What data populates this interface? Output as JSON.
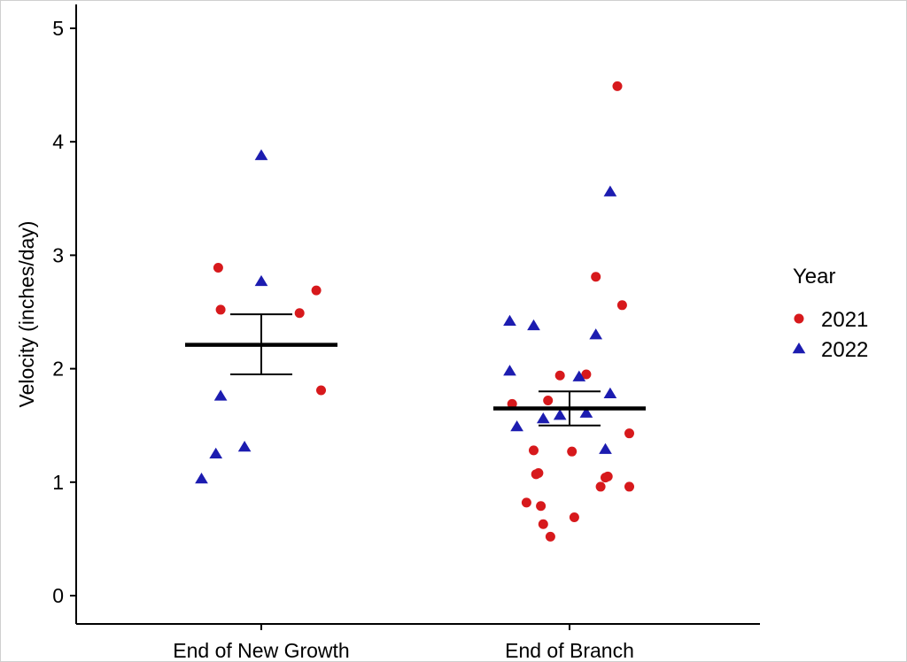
{
  "chart_data": {
    "type": "scatter",
    "title": "",
    "xlabel": "",
    "ylabel": "Velocity (inches/day)",
    "categories": [
      "End of New Growth",
      "End of Branch"
    ],
    "ylim": [
      0,
      5
    ],
    "yticks": [
      "0",
      "1",
      "2",
      "3",
      "4",
      "5"
    ],
    "grid": false,
    "legend": {
      "title": "Year",
      "placement": "right"
    },
    "series": [
      {
        "name": "2021",
        "marker": "circle",
        "color": "#d7191c",
        "points": [
          {
            "category": "End of New Growth",
            "jitter": -0.18,
            "y": 2.89
          },
          {
            "category": "End of New Growth",
            "jitter": -0.17,
            "y": 2.52
          },
          {
            "category": "End of New Growth",
            "jitter": 0.16,
            "y": 2.49
          },
          {
            "category": "End of New Growth",
            "jitter": 0.23,
            "y": 2.69
          },
          {
            "category": "End of New Growth",
            "jitter": 0.25,
            "y": 1.81
          },
          {
            "category": "End of Branch",
            "jitter": 0.2,
            "y": 4.49
          },
          {
            "category": "End of Branch",
            "jitter": 0.11,
            "y": 2.81
          },
          {
            "category": "End of Branch",
            "jitter": 0.22,
            "y": 2.56
          },
          {
            "category": "End of Branch",
            "jitter": -0.04,
            "y": 1.94
          },
          {
            "category": "End of Branch",
            "jitter": 0.07,
            "y": 1.95
          },
          {
            "category": "End of Branch",
            "jitter": -0.24,
            "y": 1.69
          },
          {
            "category": "End of Branch",
            "jitter": -0.09,
            "y": 1.72
          },
          {
            "category": "End of Branch",
            "jitter": 0.25,
            "y": 1.43
          },
          {
            "category": "End of Branch",
            "jitter": -0.15,
            "y": 1.28
          },
          {
            "category": "End of Branch",
            "jitter": 0.01,
            "y": 1.27
          },
          {
            "category": "End of Branch",
            "jitter": -0.14,
            "y": 1.07
          },
          {
            "category": "End of Branch",
            "jitter": -0.13,
            "y": 1.08
          },
          {
            "category": "End of Branch",
            "jitter": 0.16,
            "y": 1.05
          },
          {
            "category": "End of Branch",
            "jitter": 0.15,
            "y": 1.04
          },
          {
            "category": "End of Branch",
            "jitter": 0.13,
            "y": 0.96
          },
          {
            "category": "End of Branch",
            "jitter": 0.25,
            "y": 0.96
          },
          {
            "category": "End of Branch",
            "jitter": -0.18,
            "y": 0.82
          },
          {
            "category": "End of Branch",
            "jitter": -0.12,
            "y": 0.79
          },
          {
            "category": "End of Branch",
            "jitter": -0.11,
            "y": 0.63
          },
          {
            "category": "End of Branch",
            "jitter": 0.02,
            "y": 0.69
          },
          {
            "category": "End of Branch",
            "jitter": -0.08,
            "y": 0.52
          }
        ]
      },
      {
        "name": "2022",
        "marker": "triangle",
        "color": "#1c1cb0",
        "points": [
          {
            "category": "End of New Growth",
            "jitter": 0.0,
            "y": 3.88
          },
          {
            "category": "End of New Growth",
            "jitter": 0.0,
            "y": 2.77
          },
          {
            "category": "End of New Growth",
            "jitter": -0.17,
            "y": 1.76
          },
          {
            "category": "End of New Growth",
            "jitter": -0.07,
            "y": 1.31
          },
          {
            "category": "End of New Growth",
            "jitter": -0.19,
            "y": 1.25
          },
          {
            "category": "End of New Growth",
            "jitter": -0.25,
            "y": 1.03
          },
          {
            "category": "End of Branch",
            "jitter": 0.17,
            "y": 3.56
          },
          {
            "category": "End of Branch",
            "jitter": -0.25,
            "y": 2.42
          },
          {
            "category": "End of Branch",
            "jitter": -0.15,
            "y": 2.38
          },
          {
            "category": "End of Branch",
            "jitter": 0.11,
            "y": 2.3
          },
          {
            "category": "End of Branch",
            "jitter": -0.25,
            "y": 1.98
          },
          {
            "category": "End of Branch",
            "jitter": 0.04,
            "y": 1.93
          },
          {
            "category": "End of Branch",
            "jitter": 0.17,
            "y": 1.78
          },
          {
            "category": "End of Branch",
            "jitter": 0.07,
            "y": 1.61
          },
          {
            "category": "End of Branch",
            "jitter": -0.04,
            "y": 1.59
          },
          {
            "category": "End of Branch",
            "jitter": -0.11,
            "y": 1.56
          },
          {
            "category": "End of Branch",
            "jitter": -0.22,
            "y": 1.49
          },
          {
            "category": "End of Branch",
            "jitter": 0.15,
            "y": 1.29
          }
        ]
      }
    ],
    "summary": [
      {
        "category": "End of New Growth",
        "mean": 2.21,
        "lower": 1.95,
        "upper": 2.48
      },
      {
        "category": "End of Branch",
        "mean": 1.65,
        "lower": 1.5,
        "upper": 1.8
      }
    ]
  }
}
